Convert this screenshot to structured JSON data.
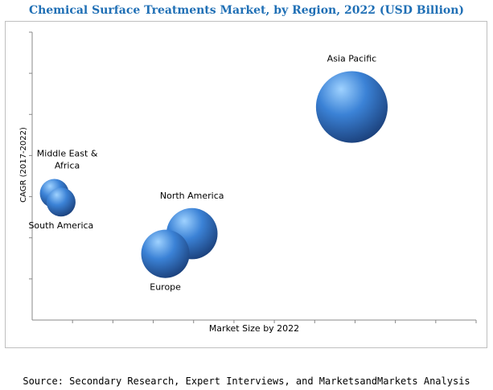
{
  "chart_data": {
    "type": "bubble",
    "title": "Chemical Surface Treatments Market, by Region, 2022 (USD Billion)",
    "xlabel": "Market Size by 2022",
    "ylabel": "CAGR (2017-2022)",
    "xlim": [
      0,
      10
    ],
    "ylim": [
      0,
      10
    ],
    "grid": false,
    "axis_tick_labels": false,
    "series": [
      {
        "label": "Asia Pacific",
        "x": 7.2,
        "y": 7.4,
        "size": 5.5
      },
      {
        "label": "North America",
        "x": 3.6,
        "y": 3.0,
        "size": 2.8
      },
      {
        "label": "Europe",
        "x": 3.0,
        "y": 2.3,
        "size": 2.5
      },
      {
        "label": "Middle East & Africa",
        "x": 0.5,
        "y": 4.4,
        "size": 0.9
      },
      {
        "label": "South America",
        "x": 0.65,
        "y": 4.1,
        "size": 0.9
      }
    ],
    "colors": {
      "bubble_light": "#9fd2ff",
      "bubble_mid": "#3b82d6",
      "bubble_dark": "#1a3e78"
    }
  },
  "source": "Source: Secondary Research, Expert Interviews, and MarketsandMarkets Analysis"
}
